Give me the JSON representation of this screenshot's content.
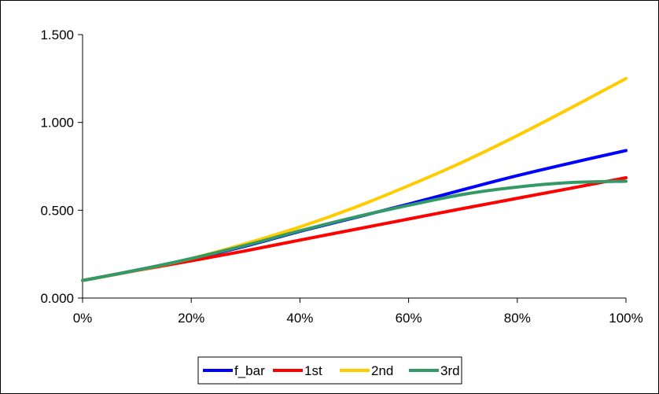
{
  "chart_data": {
    "type": "line",
    "title": "",
    "xlabel": "",
    "ylabel": "",
    "x": [
      0,
      0.1,
      0.2,
      0.3,
      0.4,
      0.5,
      0.6,
      0.7,
      0.8,
      0.9,
      1.0
    ],
    "xlim": [
      0,
      1
    ],
    "ylim": [
      0,
      1.5
    ],
    "x_ticks": [
      0,
      0.2,
      0.4,
      0.6,
      0.8,
      1.0
    ],
    "x_tick_labels": [
      "0%",
      "20%",
      "40%",
      "60%",
      "80%",
      "100%"
    ],
    "y_ticks": [
      0,
      0.5,
      1.0,
      1.5
    ],
    "y_tick_labels": [
      "0.000",
      "0.500",
      "1.000",
      "1.500"
    ],
    "grid": false,
    "legend_position": "bottom",
    "series": [
      {
        "name": "f_bar",
        "color": "#0000ff",
        "values": [
          0.1,
          0.159,
          0.223,
          0.296,
          0.38,
          0.457,
          0.535,
          0.617,
          0.697,
          0.77,
          0.84
        ]
      },
      {
        "name": "1st",
        "color": "#ff0000",
        "values": [
          0.1,
          0.157,
          0.212,
          0.269,
          0.33,
          0.39,
          0.45,
          0.51,
          0.568,
          0.626,
          0.685
        ]
      },
      {
        "name": "2nd",
        "color": "#ffcc00",
        "values": [
          0.1,
          0.158,
          0.225,
          0.31,
          0.405,
          0.515,
          0.64,
          0.775,
          0.925,
          1.085,
          1.25
        ]
      },
      {
        "name": "3rd",
        "color": "#339966",
        "values": [
          0.1,
          0.159,
          0.225,
          0.3,
          0.383,
          0.46,
          0.528,
          0.59,
          0.632,
          0.658,
          0.665
        ]
      }
    ]
  }
}
